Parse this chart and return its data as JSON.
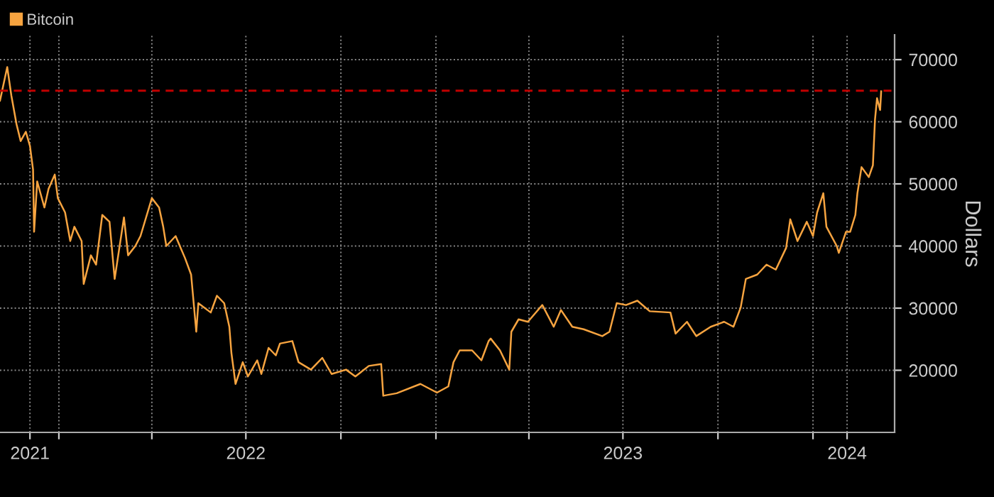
{
  "chart_data": {
    "type": "line",
    "ylabel": "Dollars",
    "x": [
      "2021-11-05",
      "2021-11-12",
      "2021-11-16",
      "2021-11-21",
      "2021-11-25",
      "2021-11-30",
      "2021-12-04",
      "2021-12-07",
      "2021-12-08",
      "2021-12-11",
      "2021-12-18",
      "2021-12-22",
      "2021-12-28",
      "2021-12-31",
      "2022-01-07",
      "2022-01-12",
      "2022-01-16",
      "2022-01-23",
      "2022-01-25",
      "2022-02-01",
      "2022-02-06",
      "2022-02-12",
      "2022-02-19",
      "2022-02-24",
      "2022-03-05",
      "2022-03-09",
      "2022-03-16",
      "2022-03-21",
      "2022-04-01",
      "2022-04-08",
      "2022-04-12",
      "2022-04-15",
      "2022-04-24",
      "2022-05-03",
      "2022-05-09",
      "2022-05-14",
      "2022-05-16",
      "2022-05-28",
      "2022-06-03",
      "2022-06-10",
      "2022-06-15",
      "2022-06-17",
      "2022-06-21",
      "2022-06-28",
      "2022-07-03",
      "2022-07-12",
      "2022-07-16",
      "2022-07-23",
      "2022-07-30",
      "2022-08-03",
      "2022-08-15",
      "2022-08-21",
      "2022-09-02",
      "2022-09-13",
      "2022-09-22",
      "2022-10-06",
      "2022-10-15",
      "2022-10-28",
      "2022-11-09",
      "2022-11-11",
      "2022-11-24",
      "2022-12-17",
      "2023-01-02",
      "2023-01-13",
      "2023-01-18",
      "2023-01-24",
      "2023-02-05",
      "2023-02-14",
      "2023-02-21",
      "2023-02-23",
      "2023-03-04",
      "2023-03-13",
      "2023-03-15",
      "2023-03-22",
      "2023-03-31",
      "2023-04-14",
      "2023-04-25",
      "2023-05-02",
      "2023-05-13",
      "2023-05-24",
      "2023-06-11",
      "2023-06-18",
      "2023-06-25",
      "2023-07-04",
      "2023-07-15",
      "2023-07-27",
      "2023-08-16",
      "2023-08-21",
      "2023-09-01",
      "2023-09-10",
      "2023-09-24",
      "2023-10-07",
      "2023-10-16",
      "2023-10-23",
      "2023-10-28",
      "2023-11-08",
      "2023-11-17",
      "2023-11-26",
      "2023-12-06",
      "2023-12-10",
      "2023-12-17",
      "2023-12-26",
      "2024-01-01",
      "2024-01-05",
      "2024-01-11",
      "2024-01-14",
      "2024-01-24",
      "2024-01-26",
      "2024-02-02",
      "2024-02-06",
      "2024-02-11",
      "2024-02-13",
      "2024-02-17",
      "2024-02-24",
      "2024-02-28",
      "2024-03-01",
      "2024-03-03",
      "2024-03-06",
      "2024-03-07"
    ],
    "series": [
      {
        "name": "Bitcoin",
        "color": "#f7a440",
        "values": [
          63400,
          68800,
          64200,
          59600,
          56900,
          58400,
          56100,
          52300,
          42300,
          50400,
          46200,
          49200,
          51500,
          47700,
          45400,
          40800,
          43100,
          40800,
          33900,
          38500,
          37000,
          45000,
          43900,
          34700,
          44600,
          38500,
          40000,
          41600,
          47700,
          46200,
          43100,
          40000,
          41600,
          38100,
          35400,
          26200,
          30800,
          29300,
          32000,
          30800,
          27000,
          22800,
          17800,
          21300,
          19000,
          21600,
          19400,
          23600,
          22400,
          24300,
          24700,
          21300,
          20100,
          22000,
          19400,
          20100,
          19000,
          20700,
          21000,
          15900,
          16300,
          17800,
          16400,
          17400,
          21300,
          23200,
          23200,
          21600,
          24700,
          25100,
          23200,
          20100,
          26200,
          28200,
          27800,
          30500,
          27000,
          29700,
          27000,
          26600,
          25500,
          26200,
          30800,
          30500,
          31200,
          29500,
          29300,
          25900,
          27800,
          25500,
          27000,
          27800,
          27000,
          30100,
          34700,
          35400,
          37000,
          36200,
          39700,
          44300,
          40800,
          43900,
          41600,
          45400,
          48500,
          43100,
          40000,
          38900,
          42300,
          42300,
          45000,
          48500,
          52700,
          51100,
          53000,
          60300,
          63800,
          61900,
          64900
        ]
      }
    ],
    "xlim": [
      "2021-11-05",
      "2024-03-20"
    ],
    "xticks": [
      {
        "value": "2021-12-04",
        "label": "2021"
      },
      {
        "value": "2022-01-01",
        "label": null
      },
      {
        "value": "2022-04-01",
        "label": null
      },
      {
        "value": "2022-07-01",
        "label": "2022"
      },
      {
        "value": "2022-10-01",
        "label": null
      },
      {
        "value": "2023-01-01",
        "label": null
      },
      {
        "value": "2023-04-01",
        "label": null
      },
      {
        "value": "2023-07-01",
        "label": "2023"
      },
      {
        "value": "2023-10-01",
        "label": null
      },
      {
        "value": "2024-01-01",
        "label": null
      },
      {
        "value": "2024-02-03",
        "label": "2024"
      }
    ],
    "ylim": [
      10000,
      74000
    ],
    "yticks": [
      20000,
      30000,
      40000,
      50000,
      60000,
      70000
    ],
    "ref_lines": [
      {
        "axis": "y",
        "value": 65000,
        "color": "#c00000",
        "line_style": "dashed"
      }
    ],
    "grid": true,
    "legend": "top left",
    "line_style": "solid",
    "marker": "none"
  }
}
